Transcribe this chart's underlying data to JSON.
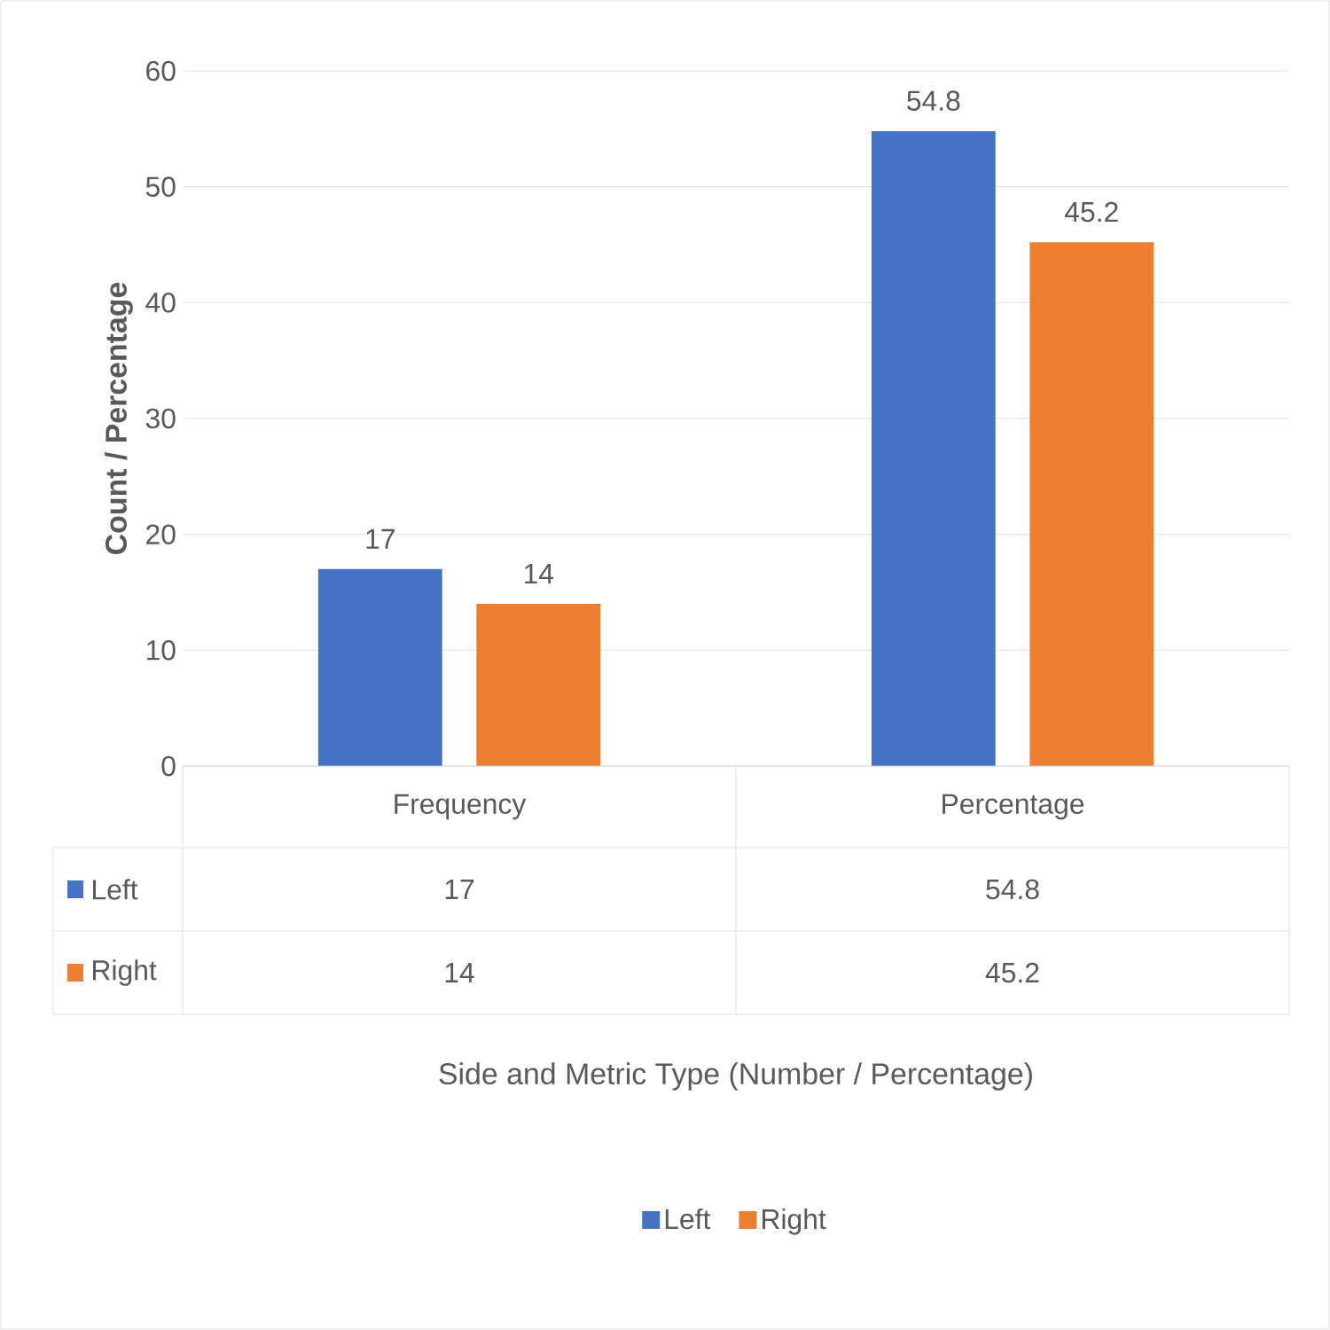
{
  "chart_data": {
    "type": "bar",
    "ylabel": "Count / Percentage",
    "annotations": [
      "Side and Metric Type (Number / Percentage)",
      "17",
      "14",
      "54.8",
      "45.2"
    ],
    "categories": [
      "Frequency",
      "Percentage"
    ],
    "series": [
      {
        "name": "Left",
        "color": "#4472c4",
        "values": [
          17,
          54.8
        ]
      },
      {
        "name": "Right",
        "color": "#ed7d31",
        "values": [
          14,
          45.2
        ]
      }
    ],
    "ylim": [
      0,
      60
    ],
    "yticks": [
      0,
      10,
      20,
      30,
      40,
      50,
      60
    ],
    "grid": "y",
    "legend": "bottom",
    "data_labels": true
  }
}
